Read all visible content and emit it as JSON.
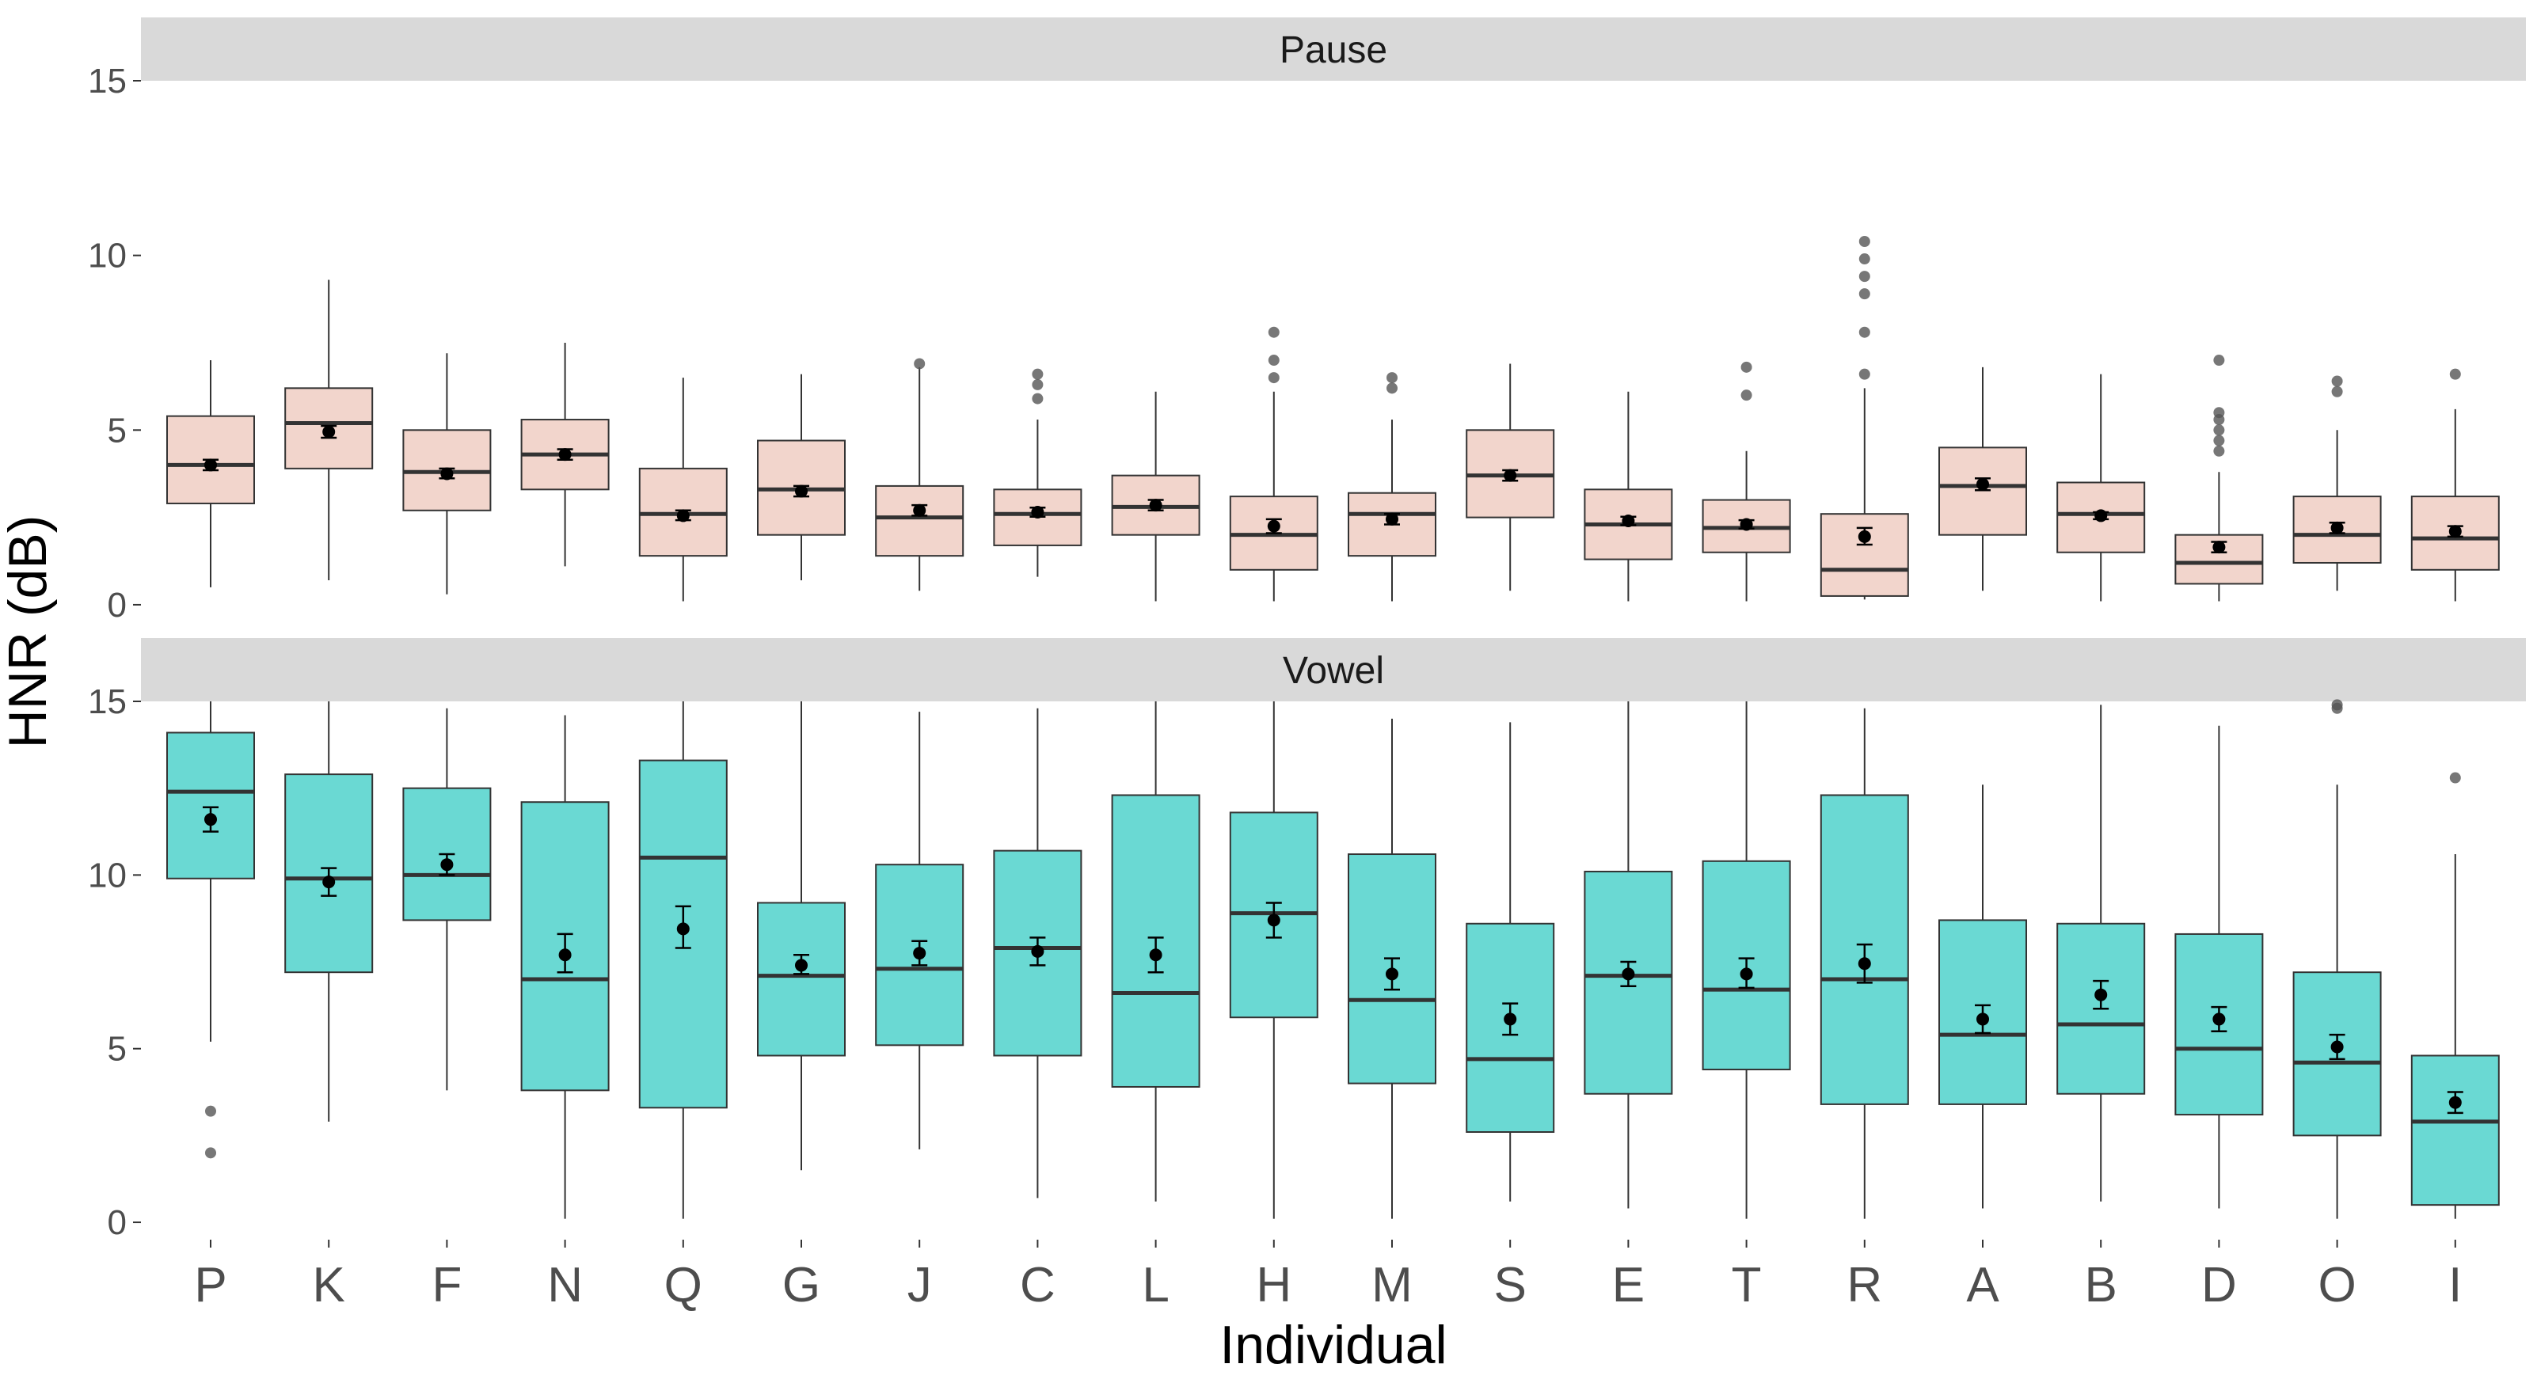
{
  "chart_data": {
    "type": "boxplot",
    "xlabel": "Individual",
    "ylabel": "HNR (dB)",
    "ylim": [
      -0.5,
      15
    ],
    "yticks": [
      0,
      5,
      10,
      15
    ],
    "categories": [
      "P",
      "K",
      "F",
      "N",
      "Q",
      "G",
      "J",
      "C",
      "L",
      "H",
      "M",
      "S",
      "E",
      "T",
      "R",
      "A",
      "B",
      "D",
      "O",
      "I"
    ],
    "grid": false,
    "colors": {
      "Pause": "#f2d5cc",
      "Vowel": "#6ad9d3",
      "strip": "#d9d9d9"
    },
    "panels": [
      {
        "label": "Pause",
        "boxes": [
          {
            "whiskerLow": 0.5,
            "q1": 2.9,
            "median": 4.0,
            "q3": 5.4,
            "whiskerHigh": 7.0,
            "mean": 4.0,
            "meanLow": 3.85,
            "meanHigh": 4.15,
            "outliers": []
          },
          {
            "whiskerLow": 0.7,
            "q1": 3.9,
            "median": 5.2,
            "q3": 6.2,
            "whiskerHigh": 9.3,
            "mean": 4.95,
            "meanLow": 4.78,
            "meanHigh": 5.12,
            "outliers": []
          },
          {
            "whiskerLow": 0.3,
            "q1": 2.7,
            "median": 3.8,
            "q3": 5.0,
            "whiskerHigh": 7.2,
            "mean": 3.75,
            "meanLow": 3.62,
            "meanHigh": 3.9,
            "outliers": []
          },
          {
            "whiskerLow": 1.1,
            "q1": 3.3,
            "median": 4.3,
            "q3": 5.3,
            "whiskerHigh": 7.5,
            "mean": 4.3,
            "meanLow": 4.15,
            "meanHigh": 4.45,
            "outliers": []
          },
          {
            "whiskerLow": 0.1,
            "q1": 1.4,
            "median": 2.6,
            "q3": 3.9,
            "whiskerHigh": 6.5,
            "mean": 2.55,
            "meanLow": 2.42,
            "meanHigh": 2.7,
            "outliers": []
          },
          {
            "whiskerLow": 0.7,
            "q1": 2.0,
            "median": 3.3,
            "q3": 4.7,
            "whiskerHigh": 6.6,
            "mean": 3.25,
            "meanLow": 3.1,
            "meanHigh": 3.4,
            "outliers": []
          },
          {
            "whiskerLow": 0.4,
            "q1": 1.4,
            "median": 2.5,
            "q3": 3.4,
            "whiskerHigh": 6.8,
            "mean": 2.7,
            "meanLow": 2.55,
            "meanHigh": 2.85,
            "outliers": [
              6.9
            ]
          },
          {
            "whiskerLow": 0.8,
            "q1": 1.7,
            "median": 2.6,
            "q3": 3.3,
            "whiskerHigh": 5.3,
            "mean": 2.65,
            "meanLow": 2.52,
            "meanHigh": 2.78,
            "outliers": [
              5.9,
              6.3,
              6.6
            ]
          },
          {
            "whiskerLow": 0.1,
            "q1": 2.0,
            "median": 2.8,
            "q3": 3.7,
            "whiskerHigh": 6.1,
            "mean": 2.85,
            "meanLow": 2.7,
            "meanHigh": 3.0,
            "outliers": []
          },
          {
            "whiskerLow": 0.1,
            "q1": 1.0,
            "median": 2.0,
            "q3": 3.1,
            "whiskerHigh": 6.1,
            "mean": 2.25,
            "meanLow": 2.05,
            "meanHigh": 2.45,
            "outliers": [
              6.5,
              7.0,
              7.8
            ]
          },
          {
            "whiskerLow": 0.1,
            "q1": 1.4,
            "median": 2.6,
            "q3": 3.2,
            "whiskerHigh": 5.3,
            "mean": 2.45,
            "meanLow": 2.3,
            "meanHigh": 2.6,
            "outliers": [
              6.2,
              6.5
            ]
          },
          {
            "whiskerLow": 0.4,
            "q1": 2.5,
            "median": 3.7,
            "q3": 5.0,
            "whiskerHigh": 6.9,
            "mean": 3.7,
            "meanLow": 3.55,
            "meanHigh": 3.85,
            "outliers": []
          },
          {
            "whiskerLow": 0.1,
            "q1": 1.3,
            "median": 2.3,
            "q3": 3.3,
            "whiskerHigh": 6.1,
            "mean": 2.4,
            "meanLow": 2.28,
            "meanHigh": 2.52,
            "outliers": []
          },
          {
            "whiskerLow": 0.1,
            "q1": 1.5,
            "median": 2.2,
            "q3": 3.0,
            "whiskerHigh": 4.4,
            "mean": 2.3,
            "meanLow": 2.18,
            "meanHigh": 2.42,
            "outliers": [
              6.0,
              6.8
            ]
          },
          {
            "whiskerLow": 0.15,
            "q1": 0.25,
            "median": 1.0,
            "q3": 2.6,
            "whiskerHigh": 6.2,
            "mean": 1.95,
            "meanLow": 1.72,
            "meanHigh": 2.2,
            "outliers": [
              6.6,
              7.8,
              8.9,
              9.4,
              9.9,
              10.4
            ]
          },
          {
            "whiskerLow": 0.4,
            "q1": 2.0,
            "median": 3.4,
            "q3": 4.5,
            "whiskerHigh": 6.8,
            "mean": 3.45,
            "meanLow": 3.28,
            "meanHigh": 3.62,
            "outliers": []
          },
          {
            "whiskerLow": 0.1,
            "q1": 1.5,
            "median": 2.6,
            "q3": 3.5,
            "whiskerHigh": 6.6,
            "mean": 2.55,
            "meanLow": 2.45,
            "meanHigh": 2.65,
            "outliers": []
          },
          {
            "whiskerLow": 0.1,
            "q1": 0.6,
            "median": 1.2,
            "q3": 2.0,
            "whiskerHigh": 3.8,
            "mean": 1.65,
            "meanLow": 1.5,
            "meanHigh": 1.8,
            "outliers": [
              4.4,
              4.7,
              5.0,
              5.3,
              5.5,
              7.0
            ]
          },
          {
            "whiskerLow": 0.4,
            "q1": 1.2,
            "median": 2.0,
            "q3": 3.1,
            "whiskerHigh": 5.0,
            "mean": 2.2,
            "meanLow": 2.05,
            "meanHigh": 2.35,
            "outliers": [
              6.1,
              6.4
            ]
          },
          {
            "whiskerLow": 0.1,
            "q1": 1.0,
            "median": 1.9,
            "q3": 3.1,
            "whiskerHigh": 5.6,
            "mean": 2.1,
            "meanLow": 1.95,
            "meanHigh": 2.25,
            "outliers": [
              6.6
            ]
          }
        ]
      },
      {
        "label": "Vowel",
        "boxes": [
          {
            "whiskerLow": 5.2,
            "q1": 9.9,
            "median": 12.4,
            "q3": 14.1,
            "whiskerHigh": 15.0,
            "mean": 11.6,
            "meanLow": 11.25,
            "meanHigh": 11.95,
            "outliers": [
              2.0,
              3.2
            ]
          },
          {
            "whiskerLow": 2.9,
            "q1": 7.2,
            "median": 9.9,
            "q3": 12.9,
            "whiskerHigh": 15.0,
            "mean": 9.8,
            "meanLow": 9.4,
            "meanHigh": 10.2,
            "outliers": []
          },
          {
            "whiskerLow": 3.8,
            "q1": 8.7,
            "median": 10.0,
            "q3": 12.5,
            "whiskerHigh": 14.8,
            "mean": 10.3,
            "meanLow": 10.0,
            "meanHigh": 10.6,
            "outliers": []
          },
          {
            "whiskerLow": 0.1,
            "q1": 3.8,
            "median": 7.0,
            "q3": 12.1,
            "whiskerHigh": 14.6,
            "mean": 7.7,
            "meanLow": 7.2,
            "meanHigh": 8.3,
            "outliers": []
          },
          {
            "whiskerLow": 0.1,
            "q1": 3.3,
            "median": 10.5,
            "q3": 13.3,
            "whiskerHigh": 15.0,
            "mean": 8.45,
            "meanLow": 7.9,
            "meanHigh": 9.1,
            "outliers": []
          },
          {
            "whiskerLow": 1.5,
            "q1": 4.8,
            "median": 7.1,
            "q3": 9.2,
            "whiskerHigh": 15.0,
            "mean": 7.4,
            "meanLow": 7.15,
            "meanHigh": 7.7,
            "outliers": []
          },
          {
            "whiskerLow": 2.1,
            "q1": 5.1,
            "median": 7.3,
            "q3": 10.3,
            "whiskerHigh": 14.7,
            "mean": 7.75,
            "meanLow": 7.4,
            "meanHigh": 8.1,
            "outliers": []
          },
          {
            "whiskerLow": 0.7,
            "q1": 4.8,
            "median": 7.9,
            "q3": 10.7,
            "whiskerHigh": 14.8,
            "mean": 7.8,
            "meanLow": 7.4,
            "meanHigh": 8.2,
            "outliers": []
          },
          {
            "whiskerLow": 0.6,
            "q1": 3.9,
            "median": 6.6,
            "q3": 12.3,
            "whiskerHigh": 15.0,
            "mean": 7.7,
            "meanLow": 7.2,
            "meanHigh": 8.2,
            "outliers": []
          },
          {
            "whiskerLow": 0.1,
            "q1": 5.9,
            "median": 8.9,
            "q3": 11.8,
            "whiskerHigh": 15.0,
            "mean": 8.7,
            "meanLow": 8.2,
            "meanHigh": 9.2,
            "outliers": []
          },
          {
            "whiskerLow": 0.1,
            "q1": 4.0,
            "median": 6.4,
            "q3": 10.6,
            "whiskerHigh": 14.5,
            "mean": 7.15,
            "meanLow": 6.7,
            "meanHigh": 7.6,
            "outliers": []
          },
          {
            "whiskerLow": 0.6,
            "q1": 2.6,
            "median": 4.7,
            "q3": 8.6,
            "whiskerHigh": 14.4,
            "mean": 5.85,
            "meanLow": 5.4,
            "meanHigh": 6.3,
            "outliers": []
          },
          {
            "whiskerLow": 0.4,
            "q1": 3.7,
            "median": 7.1,
            "q3": 10.1,
            "whiskerHigh": 15.0,
            "mean": 7.15,
            "meanLow": 6.8,
            "meanHigh": 7.5,
            "outliers": []
          },
          {
            "whiskerLow": 0.1,
            "q1": 4.4,
            "median": 6.7,
            "q3": 10.4,
            "whiskerHigh": 15.0,
            "mean": 7.15,
            "meanLow": 6.75,
            "meanHigh": 7.6,
            "outliers": []
          },
          {
            "whiskerLow": 0.1,
            "q1": 3.4,
            "median": 7.0,
            "q3": 12.3,
            "whiskerHigh": 14.8,
            "mean": 7.45,
            "meanLow": 6.9,
            "meanHigh": 8.0,
            "outliers": []
          },
          {
            "whiskerLow": 0.4,
            "q1": 3.4,
            "median": 5.4,
            "q3": 8.7,
            "whiskerHigh": 12.6,
            "mean": 5.85,
            "meanLow": 5.45,
            "meanHigh": 6.25,
            "outliers": []
          },
          {
            "whiskerLow": 0.6,
            "q1": 3.7,
            "median": 5.7,
            "q3": 8.6,
            "whiskerHigh": 14.9,
            "mean": 6.55,
            "meanLow": 6.15,
            "meanHigh": 6.95,
            "outliers": []
          },
          {
            "whiskerLow": 0.4,
            "q1": 3.1,
            "median": 5.0,
            "q3": 8.3,
            "whiskerHigh": 14.3,
            "mean": 5.85,
            "meanLow": 5.5,
            "meanHigh": 6.2,
            "outliers": []
          },
          {
            "whiskerLow": 0.1,
            "q1": 2.5,
            "median": 4.6,
            "q3": 7.2,
            "whiskerHigh": 12.6,
            "mean": 5.05,
            "meanLow": 4.7,
            "meanHigh": 5.4,
            "outliers": [
              14.8,
              14.9
            ]
          },
          {
            "whiskerLow": 0.1,
            "q1": 0.5,
            "median": 2.9,
            "q3": 4.8,
            "whiskerHigh": 10.6,
            "mean": 3.45,
            "meanLow": 3.15,
            "meanHigh": 3.75,
            "outliers": [
              12.8
            ]
          }
        ]
      }
    ]
  }
}
